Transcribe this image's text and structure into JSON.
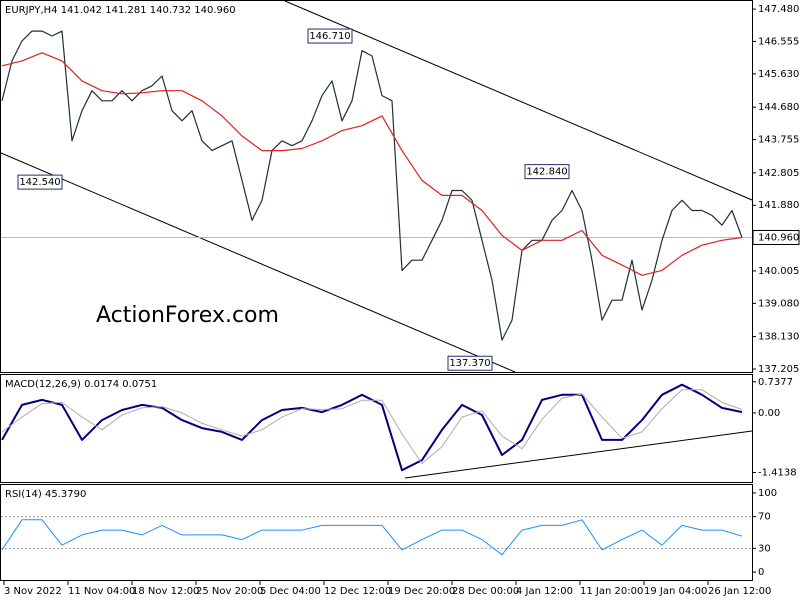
{
  "chart_data": [
    {
      "type": "line",
      "title": "EURJPY,H4  141.042 141.281 140.732 140.960",
      "watermark": "ActionForex.com",
      "ylim": [
        137.12,
        147.71
      ],
      "yticks": [
        {
          "value": 147.48,
          "label": "147.480"
        },
        146.555,
        {
          "value": 145.63,
          "label": "145.630"
        },
        {
          "value": 144.68,
          "label": "144.680"
        },
        143.755,
        142.805,
        {
          "value": 141.88,
          "label": "141.880"
        },
        140.005,
        {
          "value": 139.08,
          "label": "139.080"
        },
        {
          "value": 138.13,
          "label": "138.130"
        },
        137.205
      ],
      "last_price": {
        "value": 140.96,
        "label": "140.960"
      },
      "annotations": [
        {
          "value": 146.71,
          "label": "146.710"
        },
        {
          "value": 142.54,
          "label": "142.540"
        },
        {
          "value": 142.84,
          "label": "142.840"
        },
        {
          "value": 137.37,
          "label": "137.370"
        }
      ],
      "series": [
        {
          "name": "EURJPY",
          "color": "#1f2f38",
          "values": [
            144.86,
            146.0,
            146.57,
            146.85,
            146.85,
            146.71,
            146.85,
            143.72,
            144.58,
            145.15,
            144.86,
            144.86,
            145.15,
            144.86,
            145.15,
            145.29,
            145.57,
            144.58,
            144.29,
            144.58,
            143.72,
            143.44,
            143.58,
            143.72,
            142.59,
            141.45,
            142.02,
            143.44,
            143.72,
            143.58,
            143.72,
            144.29,
            145.01,
            145.43,
            144.29,
            144.86,
            146.29,
            146.14,
            145.01,
            144.86,
            140.02,
            140.31,
            140.31,
            140.88,
            141.45,
            142.3,
            142.3,
            142.02,
            140.88,
            139.74,
            138.03,
            138.6,
            140.59,
            140.88,
            140.88,
            141.45,
            141.73,
            142.3,
            141.73,
            140.31,
            138.6,
            139.17,
            139.17,
            140.31,
            138.89,
            139.74,
            140.88,
            141.73,
            142.02,
            141.73,
            141.73,
            141.59,
            141.31,
            141.73,
            140.96
          ]
        },
        {
          "name": "MA",
          "color": "#e02020",
          "values": [
            145.86,
            146.0,
            146.23,
            146.0,
            145.43,
            145.15,
            145.06,
            145.09,
            145.15,
            145.15,
            144.86,
            144.43,
            143.86,
            143.44,
            143.44,
            143.5,
            143.72,
            144.01,
            144.15,
            144.43,
            143.44,
            142.59,
            142.16,
            142.16,
            141.73,
            141.02,
            140.59,
            140.88,
            140.88,
            141.16,
            140.45,
            140.17,
            139.88,
            140.02,
            140.45,
            140.74,
            140.88,
            140.96
          ]
        }
      ]
    },
    {
      "type": "line",
      "title": "MACD(12,26,9) 0.0174 0.0751",
      "ylim": [
        -1.64,
        0.9
      ],
      "yticks": [
        0.7377,
        {
          "value": 0,
          "label": "0.00"
        },
        -1.4138
      ],
      "series": [
        {
          "name": "MACD",
          "color": "#000080",
          "width": 2,
          "values": [
            -0.64,
            0.19,
            0.31,
            0.19,
            -0.64,
            -0.17,
            0.07,
            0.19,
            0.12,
            -0.17,
            -0.36,
            -0.45,
            -0.64,
            -0.17,
            0.07,
            0.12,
            0.02,
            0.19,
            0.43,
            0.19,
            -1.36,
            -1.12,
            -0.4,
            0.19,
            -0.05,
            -1.0,
            -0.64,
            0.31,
            0.43,
            0.43,
            -0.64,
            -0.64,
            -0.17,
            0.43,
            0.67,
            0.43,
            0.12,
            0.02
          ]
        },
        {
          "name": "Signal",
          "color": "#b8a8a8",
          "width": 1,
          "values": [
            -0.45,
            -0.1,
            0.22,
            0.25,
            -0.1,
            -0.4,
            -0.05,
            0.12,
            0.15,
            0.0,
            -0.25,
            -0.4,
            -0.55,
            -0.4,
            -0.1,
            0.1,
            0.08,
            0.1,
            0.3,
            0.3,
            -0.5,
            -1.2,
            -0.8,
            -0.1,
            0.05,
            -0.55,
            -0.85,
            -0.15,
            0.35,
            0.45,
            -0.1,
            -0.6,
            -0.45,
            0.1,
            0.55,
            0.55,
            0.25,
            0.08
          ]
        }
      ]
    },
    {
      "type": "line",
      "title": "RSI(14) 45.3790",
      "ylim": [
        -10,
        110
      ],
      "yticks": [
        100,
        70,
        30,
        0
      ],
      "levels": [
        70,
        30
      ],
      "series": [
        {
          "name": "RSI",
          "color": "#1e90ff",
          "width": 1,
          "values": [
            28,
            66,
            66,
            34,
            47,
            53,
            53,
            47,
            59,
            47,
            47,
            47,
            41,
            53,
            53,
            53,
            59,
            59,
            59,
            59,
            28,
            41,
            53,
            53,
            41,
            22,
            53,
            59,
            59,
            66,
            28,
            41,
            53,
            34,
            59,
            53,
            53,
            45.38
          ]
        }
      ]
    }
  ],
  "time_axis": [
    "3 Nov 2022",
    "11 Nov 04:00",
    "18 Nov 12:00",
    "25 Nov 20:00",
    "5 Dec 04:00",
    "12 Dec 12:00",
    "19 Dec 20:00",
    "28 Dec 00:00",
    "4 Jan 12:00",
    "11 Jan 20:00",
    "19 Jan 04:00",
    "26 Jan 12:00"
  ]
}
